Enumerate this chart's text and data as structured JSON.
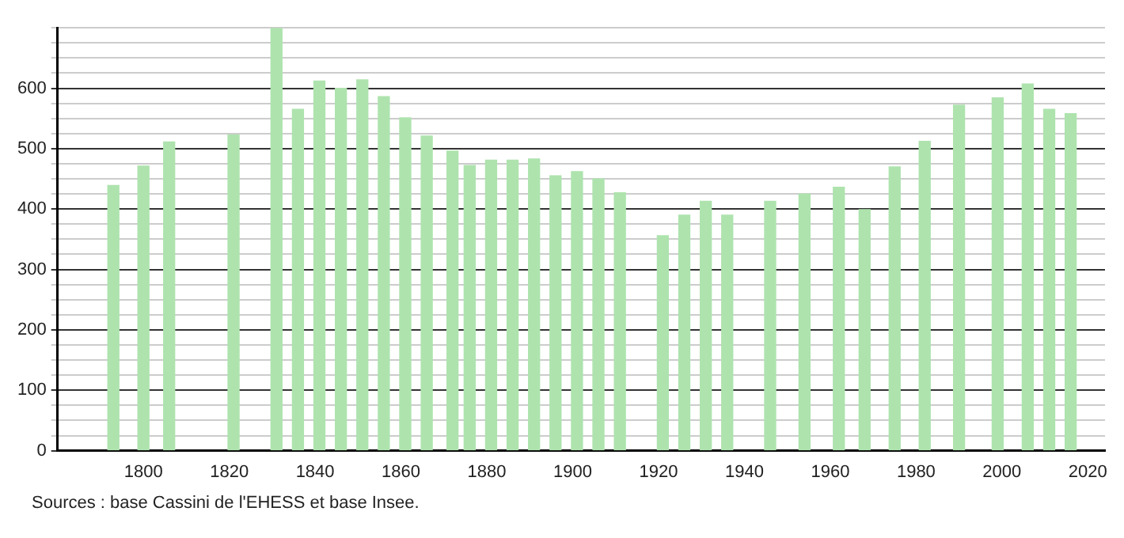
{
  "chart_data": {
    "type": "bar",
    "annotations": [
      "Sources : base Cassini de l'EHESS et base Insee."
    ],
    "x": [
      1793,
      1800,
      1806,
      1821,
      1831,
      1836,
      1841,
      1846,
      1851,
      1856,
      1861,
      1866,
      1872,
      1876,
      1881,
      1886,
      1891,
      1896,
      1901,
      1906,
      1911,
      1921,
      1926,
      1931,
      1936,
      1946,
      1954,
      1962,
      1968,
      1975,
      1982,
      1990,
      1999,
      2006,
      2011,
      2016
    ],
    "values": [
      439,
      471,
      511,
      523,
      700,
      565,
      612,
      600,
      614,
      586,
      551,
      521,
      496,
      472,
      481,
      481,
      483,
      455,
      462,
      450,
      427,
      356,
      390,
      413,
      390,
      413,
      425,
      436,
      399,
      470,
      512,
      572,
      584,
      607,
      565,
      558
    ],
    "color": "#aee3ae",
    "xlim": [
      1780,
      2024
    ],
    "xticks": [
      1800,
      1820,
      1840,
      1860,
      1880,
      1900,
      1920,
      1940,
      1960,
      1980,
      2000,
      2020
    ],
    "ylim": [
      0,
      700
    ],
    "yticks": [
      0,
      {
        "value": 25,
        "label": null
      },
      {
        "value": 50,
        "label": null
      },
      {
        "value": 75,
        "label": null
      },
      100,
      {
        "value": 125,
        "label": null
      },
      {
        "value": 150,
        "label": null
      },
      {
        "value": 175,
        "label": null
      },
      200,
      {
        "value": 225,
        "label": null
      },
      {
        "value": 250,
        "label": null
      },
      {
        "value": 275,
        "label": null
      },
      300,
      {
        "value": 325,
        "label": null
      },
      {
        "value": 350,
        "label": null
      },
      {
        "value": 375,
        "label": null
      },
      400,
      {
        "value": 425,
        "label": null
      },
      {
        "value": 450,
        "label": null
      },
      {
        "value": 475,
        "label": null
      },
      500,
      {
        "value": 525,
        "label": null
      },
      {
        "value": 550,
        "label": null
      },
      {
        "value": 575,
        "label": null
      },
      600,
      {
        "value": 625,
        "label": null
      },
      {
        "value": 650,
        "label": null
      },
      {
        "value": 675,
        "label": null
      },
      {
        "value": 700,
        "label": null
      }
    ],
    "grid": "y"
  }
}
